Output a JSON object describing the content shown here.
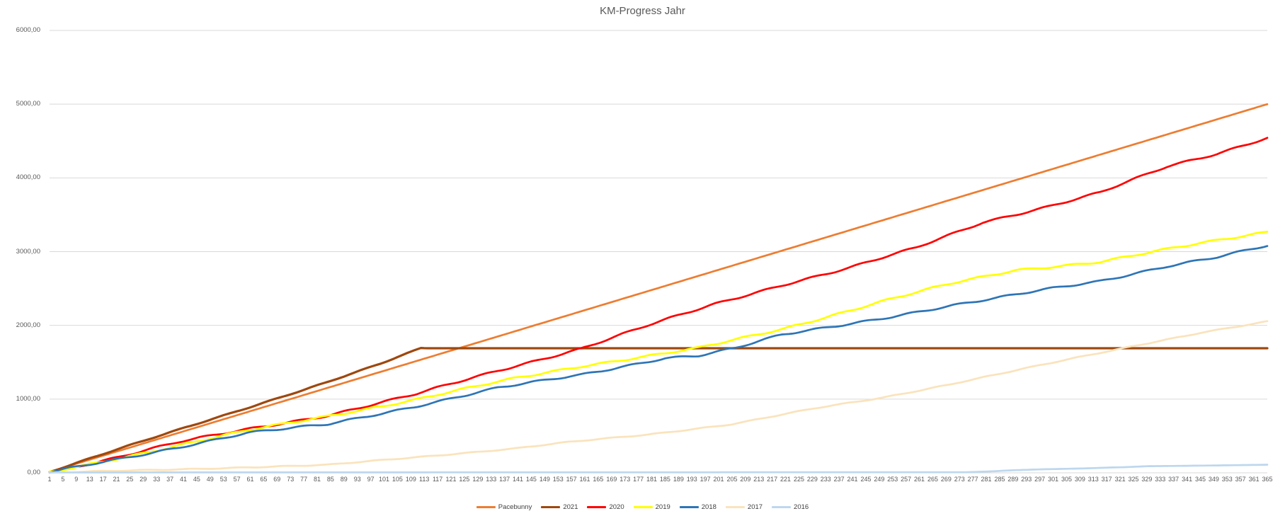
{
  "title": "KM-Progress Jahr",
  "chart_data": {
    "type": "line",
    "title": "KM-Progress Jahr",
    "xlabel": "",
    "ylabel": "",
    "x_axis": {
      "min": 1,
      "max": 365,
      "ticks": [
        1,
        5,
        9,
        13,
        17,
        21,
        25,
        29,
        33,
        37,
        41,
        45,
        49,
        53,
        57,
        61,
        65,
        69,
        73,
        77,
        81,
        85,
        89,
        93,
        97,
        101,
        105,
        109,
        113,
        117,
        121,
        125,
        129,
        133,
        137,
        141,
        145,
        149,
        153,
        157,
        161,
        165,
        169,
        173,
        177,
        181,
        185,
        189,
        193,
        197,
        201,
        205,
        209,
        213,
        217,
        221,
        225,
        229,
        233,
        237,
        241,
        245,
        249,
        253,
        257,
        261,
        265,
        269,
        273,
        277,
        281,
        285,
        289,
        293,
        297,
        301,
        305,
        309,
        313,
        317,
        321,
        325,
        329,
        333,
        337,
        341,
        345,
        349,
        353,
        357,
        361,
        365
      ]
    },
    "y_axis": {
      "min": 0,
      "max": 6000,
      "tick_step": 1000,
      "tick_labels": [
        "0,00",
        "1000,00",
        "2000,00",
        "3000,00",
        "4000,00",
        "5000,00",
        "6000,00"
      ],
      "grid": true,
      "grid_color": "#D9D9D9"
    },
    "legend": {
      "position": "bottom"
    },
    "series": [
      {
        "name": "Pacebunny",
        "color": "#ED7D31",
        "anchors": [
          [
            1,
            14
          ],
          [
            365,
            5000
          ]
        ]
      },
      {
        "name": "2021",
        "color": "#9E480E",
        "anchors": [
          [
            1,
            15
          ],
          [
            20,
            300
          ],
          [
            40,
            590
          ],
          [
            60,
            880
          ],
          [
            84,
            1230
          ],
          [
            100,
            1480
          ],
          [
            112,
            1690
          ],
          [
            365,
            1690
          ]
        ]
      },
      {
        "name": "2020",
        "color": "#FF0000",
        "anchors": [
          [
            1,
            8
          ],
          [
            20,
            200
          ],
          [
            40,
            420
          ],
          [
            60,
            590
          ],
          [
            84,
            780
          ],
          [
            110,
            1060
          ],
          [
            135,
            1385
          ],
          [
            160,
            1690
          ],
          [
            180,
            2000
          ],
          [
            200,
            2290
          ],
          [
            220,
            2550
          ],
          [
            240,
            2780
          ],
          [
            260,
            3050
          ],
          [
            280,
            3400
          ],
          [
            300,
            3620
          ],
          [
            315,
            3800
          ],
          [
            335,
            4150
          ],
          [
            350,
            4330
          ],
          [
            365,
            4550
          ]
        ]
      },
      {
        "name": "2019",
        "color": "#FFFF00",
        "anchors": [
          [
            1,
            5
          ],
          [
            30,
            280
          ],
          [
            60,
            570
          ],
          [
            84,
            770
          ],
          [
            110,
            990
          ],
          [
            140,
            1280
          ],
          [
            160,
            1450
          ],
          [
            195,
            1690
          ],
          [
            220,
            1950
          ],
          [
            250,
            2330
          ],
          [
            270,
            2560
          ],
          [
            290,
            2750
          ],
          [
            315,
            2865
          ],
          [
            335,
            3030
          ],
          [
            350,
            3150
          ],
          [
            365,
            3270
          ]
        ]
      },
      {
        "name": "2018",
        "color": "#2E75B6",
        "anchors": [
          [
            1,
            5
          ],
          [
            30,
            260
          ],
          [
            60,
            540
          ],
          [
            84,
            655
          ],
          [
            110,
            900
          ],
          [
            135,
            1150
          ],
          [
            160,
            1330
          ],
          [
            185,
            1560
          ],
          [
            195,
            1590
          ],
          [
            206,
            1690
          ],
          [
            220,
            1870
          ],
          [
            250,
            2100
          ],
          [
            270,
            2260
          ],
          [
            284,
            2365
          ],
          [
            300,
            2500
          ],
          [
            315,
            2606
          ],
          [
            335,
            2800
          ],
          [
            350,
            2920
          ],
          [
            365,
            3080
          ]
        ]
      },
      {
        "name": "2017",
        "color": "#FAE3BC",
        "anchors": [
          [
            1,
            2
          ],
          [
            30,
            35
          ],
          [
            60,
            75
          ],
          [
            84,
            106
          ],
          [
            110,
            210
          ],
          [
            140,
            330
          ],
          [
            156,
            415
          ],
          [
            180,
            520
          ],
          [
            205,
            660
          ],
          [
            230,
            875
          ],
          [
            250,
            1020
          ],
          [
            270,
            1200
          ],
          [
            290,
            1390
          ],
          [
            310,
            1580
          ],
          [
            326,
            1730
          ],
          [
            345,
            1900
          ],
          [
            365,
            2050
          ]
        ]
      },
      {
        "name": "2016",
        "color": "#BDD7EE",
        "anchors": [
          [
            1,
            5
          ],
          [
            275,
            8
          ],
          [
            295,
            45
          ],
          [
            315,
            65
          ],
          [
            330,
            90
          ],
          [
            350,
            100
          ],
          [
            365,
            110
          ]
        ]
      }
    ]
  }
}
